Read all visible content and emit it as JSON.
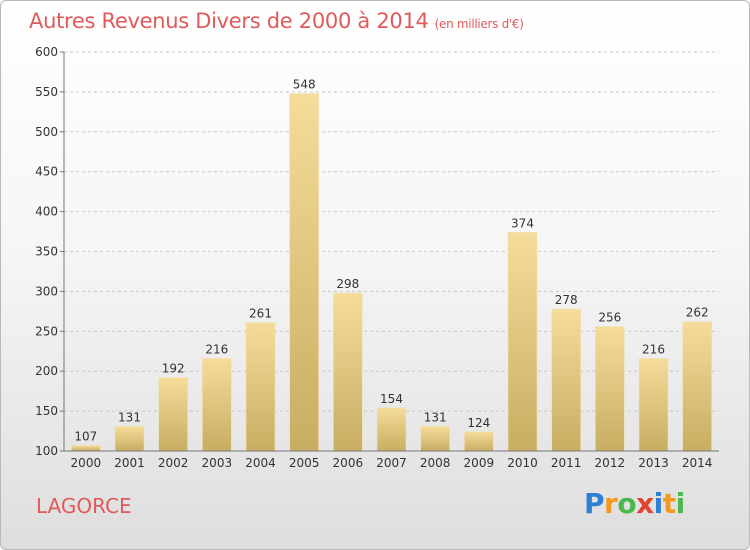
{
  "chart_data": {
    "type": "bar",
    "title": "Autres Revenus Divers de 2000 à 2014",
    "unit_note": "(en milliers d'€)",
    "categories": [
      "2000",
      "2001",
      "2002",
      "2003",
      "2004",
      "2005",
      "2006",
      "2007",
      "2008",
      "2009",
      "2010",
      "2011",
      "2012",
      "2013",
      "2014"
    ],
    "values": [
      107,
      131,
      192,
      216,
      261,
      548,
      298,
      154,
      131,
      124,
      374,
      278,
      256,
      216,
      262
    ],
    "ylim": [
      100,
      600
    ],
    "yticks": [
      100,
      150,
      200,
      250,
      300,
      350,
      400,
      450,
      500,
      550,
      600
    ],
    "grid": true,
    "bar_color_top": "#f5dc9a",
    "bar_color_bottom": "#c8ad62"
  },
  "place": "LAGORCE",
  "logo": {
    "text": "Proxiti"
  }
}
